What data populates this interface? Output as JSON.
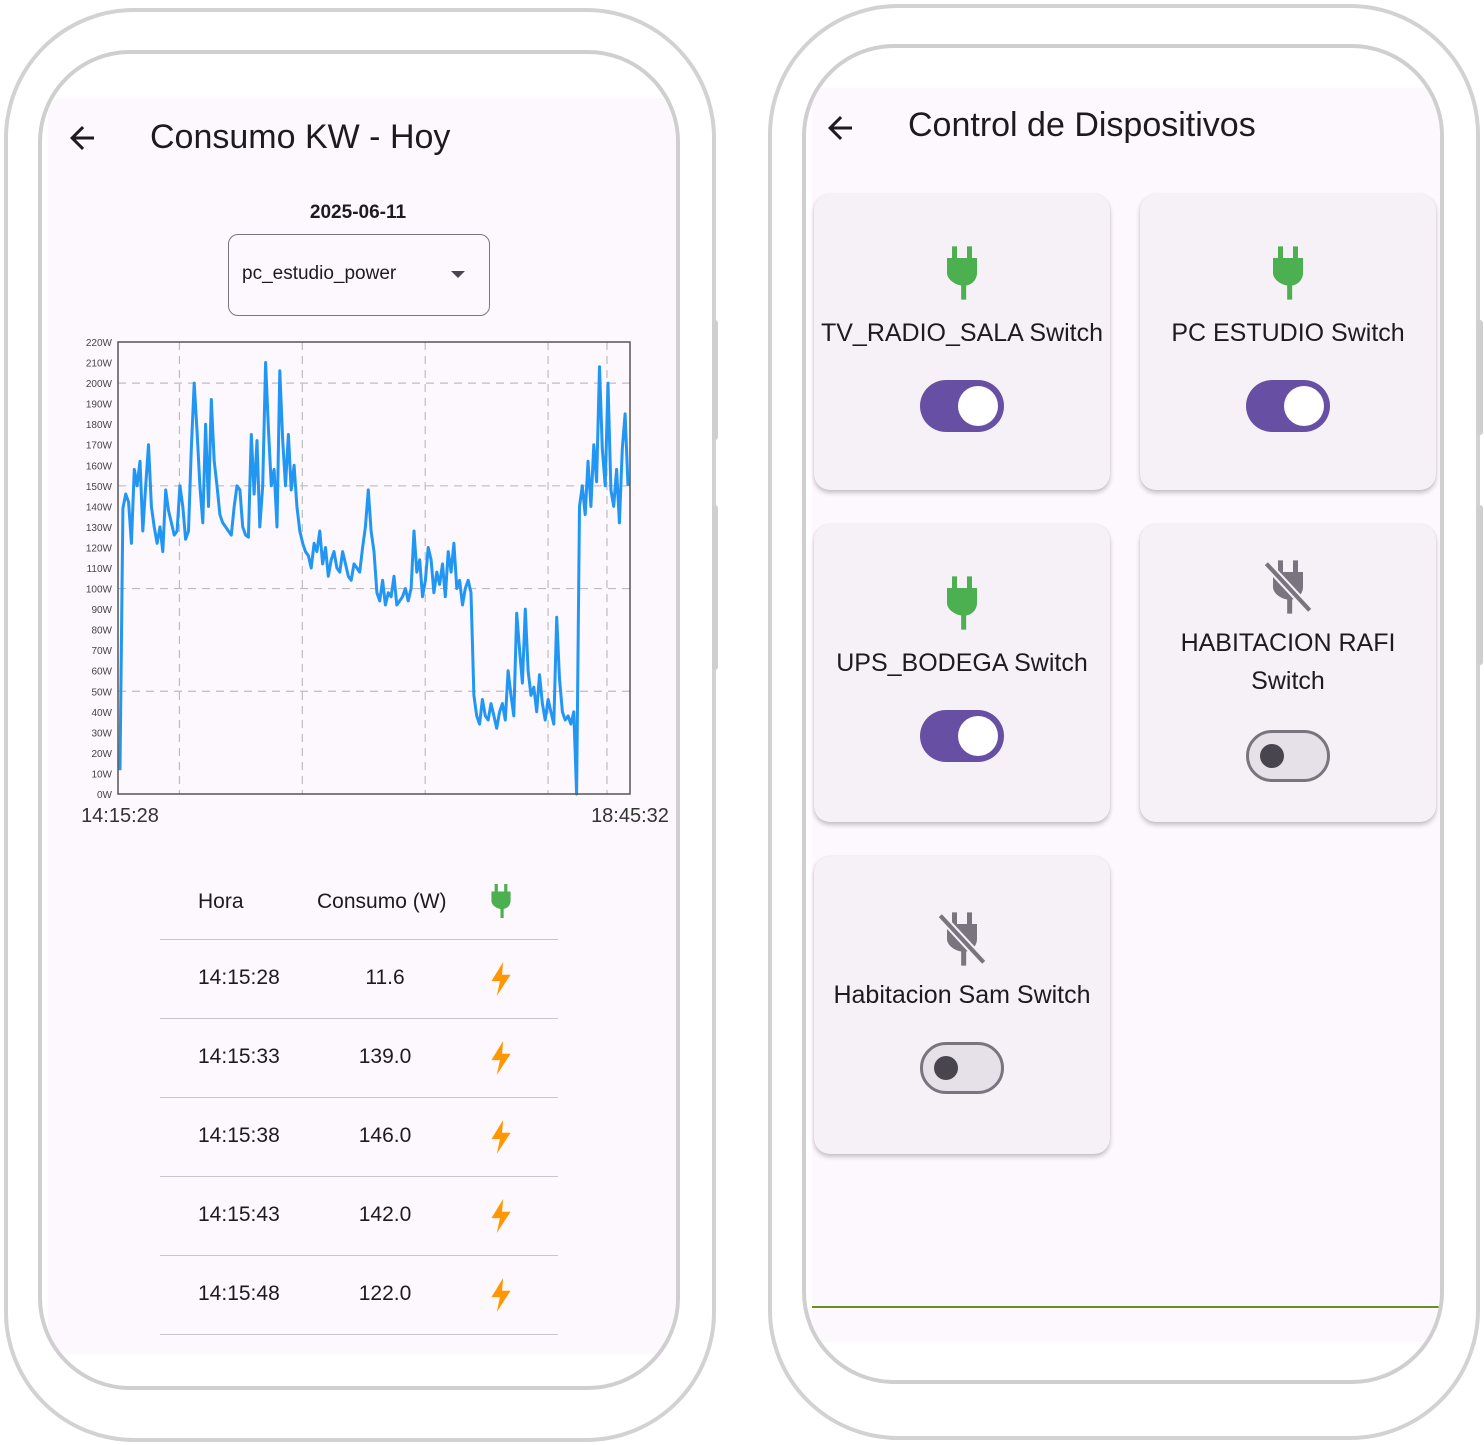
{
  "colors": {
    "background": "#fdf7fe",
    "chart_line": "#2196f3",
    "plug_on": "#4caf50",
    "plug_off": "#79747e",
    "bolt": "#ff9800",
    "toggle_on": "#6750a4"
  },
  "consumo_screen": {
    "title": "Consumo KW - Hoy",
    "back_icon": "arrow-back-icon",
    "date": "2025-06-11",
    "device_select": {
      "value": "pc_estudio_power"
    },
    "table": {
      "headers": {
        "hora": "Hora",
        "consumo": "Consumo (W)",
        "icon": "plug-icon"
      },
      "rows": [
        {
          "hora": "14:15:28",
          "consumo": "11.6",
          "icon": "bolt-icon"
        },
        {
          "hora": "14:15:33",
          "consumo": "139.0",
          "icon": "bolt-icon"
        },
        {
          "hora": "14:15:38",
          "consumo": "146.0",
          "icon": "bolt-icon"
        },
        {
          "hora": "14:15:43",
          "consumo": "142.0",
          "icon": "bolt-icon"
        },
        {
          "hora": "14:15:48",
          "consumo": "122.0",
          "icon": "bolt-icon"
        }
      ]
    }
  },
  "chart_data": {
    "type": "line",
    "title": "",
    "xlabel": "",
    "ylabel": "",
    "ylim": [
      0,
      220
    ],
    "grid": true,
    "y_ticks": [
      "0W",
      "10W",
      "20W",
      "30W",
      "40W",
      "50W",
      "60W",
      "70W",
      "80W",
      "90W",
      "100W",
      "110W",
      "120W",
      "130W",
      "140W",
      "150W",
      "160W",
      "170W",
      "180W",
      "190W",
      "200W",
      "210W",
      "220W"
    ],
    "x_tick_labels": [
      "14:15:28",
      "18:45:32"
    ],
    "series": [
      {
        "values": [
          11.6,
          139,
          146,
          142,
          122,
          158,
          150,
          162,
          128,
          150,
          170,
          140,
          130,
          122,
          130,
          118,
          148,
          138,
          132,
          126,
          128,
          150,
          140,
          124,
          128,
          168,
          200,
          176,
          150,
          132,
          180,
          140,
          192,
          162,
          150,
          136,
          132,
          130,
          128,
          126,
          140,
          150,
          148,
          130,
          126,
          125,
          175,
          146,
          172,
          130,
          150,
          210,
          178,
          150,
          158,
          130,
          206,
          172,
          150,
          175,
          148,
          160,
          140,
          128,
          122,
          118,
          116,
          110,
          122,
          118,
          128,
          112,
          120,
          106,
          114,
          118,
          110,
          108,
          118,
          112,
          106,
          104,
          112,
          110,
          108,
          120,
          130,
          148,
          128,
          118,
          98,
          94,
          104,
          92,
          98,
          96,
          106,
          92,
          94,
          96,
          100,
          94,
          100,
          128,
          108,
          114,
          96,
          104,
          120,
          114,
          98,
          108,
          102,
          112,
          96,
          118,
          108,
          122,
          100,
          104,
          92,
          100,
          104,
          98,
          48,
          38,
          34,
          46,
          38,
          36,
          44,
          38,
          32,
          40,
          44,
          36,
          60,
          48,
          38,
          88,
          70,
          54,
          90,
          60,
          48,
          52,
          40,
          58,
          44,
          36,
          46,
          40,
          34,
          86,
          56,
          40,
          36,
          38,
          34,
          40,
          0,
          140,
          150,
          136,
          162,
          140,
          170,
          152,
          208,
          168,
          150,
          200,
          148,
          140,
          158,
          132,
          168,
          185,
          150
        ],
        "x_start": "14:15:28",
        "x_end": "18:45:32"
      }
    ]
  },
  "control_screen": {
    "title": "Control de Dispositivos",
    "back_icon": "arrow-back-icon",
    "devices": [
      {
        "name": "TV_RADIO_SALA Switch",
        "on": true,
        "icon": "plug-icon"
      },
      {
        "name": "PC ESTUDIO Switch",
        "on": true,
        "icon": "plug-icon"
      },
      {
        "name": "UPS_BODEGA Switch",
        "on": true,
        "icon": "plug-icon"
      },
      {
        "name": "HABITACION RAFI Switch",
        "on": false,
        "icon": "plug-off-icon"
      },
      {
        "name": "Habitacion Sam Switch",
        "on": false,
        "icon": "plug-off-icon"
      }
    ]
  }
}
